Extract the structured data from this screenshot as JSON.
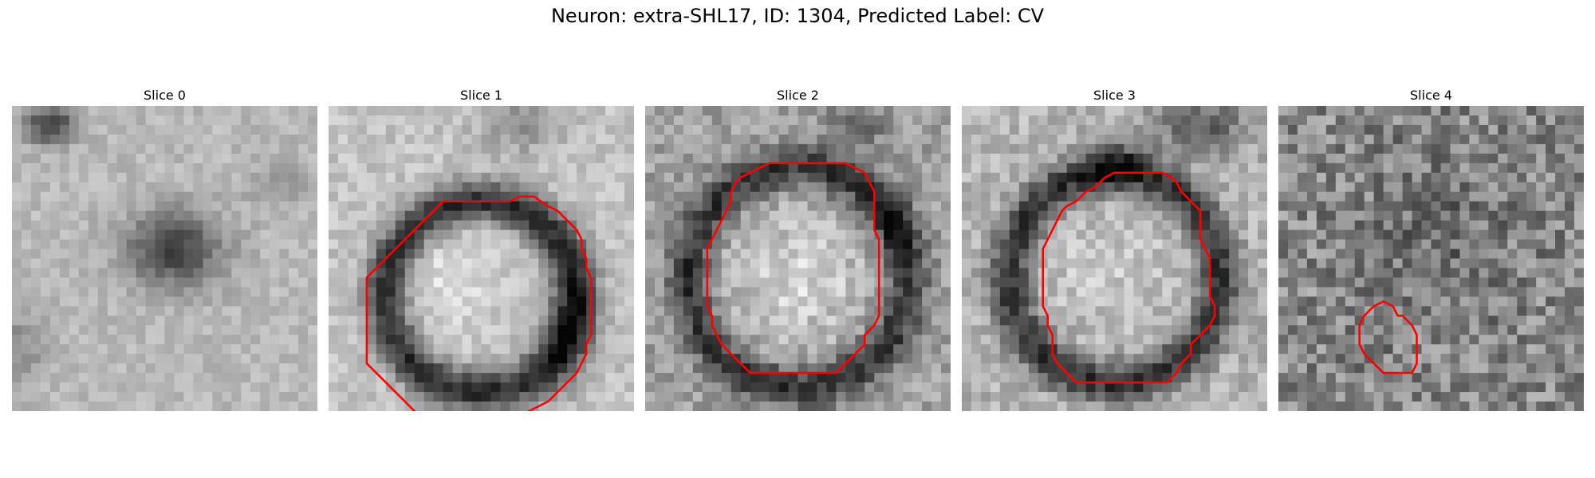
{
  "figure": {
    "title": "Neuron: extra-SHL17, ID: 1304, Predicted Label: CV"
  },
  "panels": [
    {
      "title": "Slice 0",
      "contour": []
    },
    {
      "title": "Slice 1",
      "contour": [
        [
          19,
          10
        ],
        [
          20,
          9.5
        ],
        [
          21.5,
          9.5
        ],
        [
          23,
          10.5
        ],
        [
          24,
          11
        ],
        [
          25,
          12
        ],
        [
          26,
          13
        ],
        [
          26.5,
          14
        ],
        [
          26.5,
          15
        ],
        [
          27,
          16
        ],
        [
          27,
          17
        ],
        [
          27.5,
          18
        ],
        [
          27.5,
          19
        ],
        [
          27.5,
          20
        ],
        [
          27.5,
          21
        ],
        [
          27.5,
          22
        ],
        [
          27.5,
          23
        ],
        [
          27.5,
          24
        ],
        [
          27,
          25
        ],
        [
          27,
          26
        ],
        [
          26.5,
          27
        ],
        [
          26,
          28
        ],
        [
          25,
          29
        ],
        [
          24,
          30
        ],
        [
          23,
          31
        ],
        [
          22,
          31.5
        ],
        [
          21,
          32
        ],
        [
          20,
          32.5
        ],
        [
          19,
          33
        ],
        [
          18,
          33.5
        ],
        [
          17,
          34
        ],
        [
          16,
          34
        ],
        [
          15,
          34
        ],
        [
          14,
          34
        ],
        [
          13,
          34
        ],
        [
          12,
          34
        ],
        [
          11,
          33.5
        ],
        [
          10,
          33
        ],
        [
          9,
          32
        ],
        [
          8,
          31
        ],
        [
          7,
          30
        ],
        [
          6,
          29
        ],
        [
          5,
          28
        ],
        [
          4,
          27
        ],
        [
          4,
          26
        ],
        [
          4,
          25
        ],
        [
          4,
          24
        ],
        [
          4,
          23
        ],
        [
          4,
          22
        ],
        [
          4,
          21
        ],
        [
          4,
          20
        ],
        [
          4,
          19
        ],
        [
          4,
          18
        ],
        [
          5,
          17
        ],
        [
          6,
          16
        ],
        [
          7,
          15
        ],
        [
          8,
          14
        ],
        [
          9,
          13
        ],
        [
          10,
          12
        ],
        [
          11,
          11
        ],
        [
          12,
          10
        ],
        [
          13,
          10
        ],
        [
          14,
          10
        ],
        [
          15,
          10
        ],
        [
          16,
          10
        ],
        [
          17,
          10
        ],
        [
          18,
          10
        ],
        [
          19,
          10
        ]
      ]
    },
    {
      "title": "Slice 2",
      "contour": [
        [
          9,
          9
        ],
        [
          9.5,
          8
        ],
        [
          10,
          7.5
        ],
        [
          11,
          7
        ],
        [
          12,
          6.5
        ],
        [
          13,
          6
        ],
        [
          14,
          6
        ],
        [
          15,
          6
        ],
        [
          16,
          6
        ],
        [
          17,
          6
        ],
        [
          18,
          6
        ],
        [
          19,
          6
        ],
        [
          20,
          6
        ],
        [
          21,
          6
        ],
        [
          22,
          6.5
        ],
        [
          23,
          7
        ],
        [
          23.5,
          8
        ],
        [
          24,
          9
        ],
        [
          24,
          10
        ],
        [
          24,
          11
        ],
        [
          24,
          12
        ],
        [
          24,
          13
        ],
        [
          24.5,
          14
        ],
        [
          24.5,
          15
        ],
        [
          24.5,
          16
        ],
        [
          24.5,
          17
        ],
        [
          24.5,
          18
        ],
        [
          24.5,
          19
        ],
        [
          24.5,
          20
        ],
        [
          24.5,
          21
        ],
        [
          24.5,
          22
        ],
        [
          24,
          23
        ],
        [
          23,
          24
        ],
        [
          23,
          25
        ],
        [
          22,
          26
        ],
        [
          21,
          27
        ],
        [
          20,
          28
        ],
        [
          19,
          28
        ],
        [
          18,
          28
        ],
        [
          17,
          28
        ],
        [
          16,
          28
        ],
        [
          15,
          28
        ],
        [
          14,
          28
        ],
        [
          13,
          28
        ],
        [
          12,
          28
        ],
        [
          11,
          28
        ],
        [
          10,
          27
        ],
        [
          9,
          26
        ],
        [
          8,
          25
        ],
        [
          7.5,
          24
        ],
        [
          7,
          23
        ],
        [
          7,
          22
        ],
        [
          6.5,
          21
        ],
        [
          6.5,
          20
        ],
        [
          6.5,
          19
        ],
        [
          6.5,
          18
        ],
        [
          6.5,
          17
        ],
        [
          6.5,
          16
        ],
        [
          6.5,
          15
        ],
        [
          7,
          14
        ],
        [
          7.5,
          13
        ],
        [
          8,
          12
        ],
        [
          8.5,
          11
        ],
        [
          9,
          10
        ],
        [
          9,
          9
        ]
      ]
    },
    {
      "title": "Slice 3",
      "contour": [
        [
          12,
          10
        ],
        [
          13,
          9
        ],
        [
          14,
          8.5
        ],
        [
          15,
          7.5
        ],
        [
          16,
          7
        ],
        [
          17,
          7
        ],
        [
          18,
          7
        ],
        [
          19,
          7
        ],
        [
          20,
          7
        ],
        [
          21,
          7
        ],
        [
          22,
          7.5
        ],
        [
          22.5,
          8
        ],
        [
          23,
          9
        ],
        [
          24,
          10
        ],
        [
          25,
          11
        ],
        [
          25,
          12
        ],
        [
          25,
          13
        ],
        [
          25,
          14
        ],
        [
          25.5,
          15
        ],
        [
          26,
          16
        ],
        [
          26,
          17
        ],
        [
          26,
          18
        ],
        [
          26,
          19
        ],
        [
          26,
          20
        ],
        [
          26.5,
          21
        ],
        [
          26.5,
          22
        ],
        [
          26,
          23
        ],
        [
          25,
          24
        ],
        [
          24,
          25
        ],
        [
          24,
          26
        ],
        [
          23,
          27
        ],
        [
          22.5,
          28
        ],
        [
          21.5,
          29
        ],
        [
          20.5,
          29
        ],
        [
          19,
          29
        ],
        [
          18,
          29
        ],
        [
          17,
          29
        ],
        [
          16,
          29
        ],
        [
          15,
          29
        ],
        [
          14,
          29
        ],
        [
          13,
          29
        ],
        [
          12,
          29
        ],
        [
          11,
          28
        ],
        [
          10,
          27
        ],
        [
          9.5,
          26
        ],
        [
          9.5,
          25
        ],
        [
          9.5,
          24
        ],
        [
          9,
          23
        ],
        [
          9,
          22
        ],
        [
          8.5,
          21
        ],
        [
          8.5,
          20
        ],
        [
          8.5,
          19
        ],
        [
          8.5,
          18
        ],
        [
          8.5,
          17
        ],
        [
          8.5,
          16
        ],
        [
          8.5,
          15
        ],
        [
          9,
          14
        ],
        [
          9.5,
          13
        ],
        [
          10,
          12
        ],
        [
          10.5,
          11
        ],
        [
          11,
          10.5
        ],
        [
          12,
          10
        ]
      ]
    },
    {
      "title": "Slice 4",
      "contour": [
        [
          12,
          21
        ],
        [
          12.5,
          22
        ],
        [
          13,
          22
        ],
        [
          13.5,
          22.5
        ],
        [
          14,
          23
        ],
        [
          14.5,
          24
        ],
        [
          14.5,
          25
        ],
        [
          14.5,
          26
        ],
        [
          14.5,
          27
        ],
        [
          14,
          28
        ],
        [
          13,
          28
        ],
        [
          12,
          28
        ],
        [
          11,
          28
        ],
        [
          10,
          27
        ],
        [
          9,
          26
        ],
        [
          8.5,
          25
        ],
        [
          8.5,
          24
        ],
        [
          8.5,
          23
        ],
        [
          9,
          22
        ],
        [
          10,
          21
        ],
        [
          11,
          20.5
        ],
        [
          12,
          21
        ]
      ]
    }
  ],
  "colors": {
    "contour": "#ff0000",
    "background": "#ffffff"
  }
}
